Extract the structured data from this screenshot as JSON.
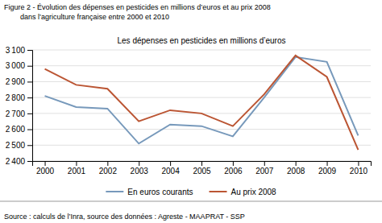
{
  "chart_data": {
    "type": "line",
    "title": [
      "Figure 2 - Évolution des dépenses en pesticides en millions d’euros et au prix 2008",
      "        dans l’agriculture française entre 2000 et 2010"
    ],
    "subtitle": "Les dépenses en pesticides en millions d’euros",
    "annotations": [
      "Source : calculs de l’Inra, source des données : Agreste - MAAPRAT - SSP"
    ],
    "x": [
      2000,
      2001,
      2002,
      2003,
      2004,
      2005,
      2006,
      2007,
      2008,
      2009,
      2010
    ],
    "series": [
      {
        "name": "En euros courants",
        "color": "#7799bb",
        "values": [
          2810,
          2740,
          2730,
          2510,
          2630,
          2620,
          2555,
          2800,
          3055,
          3025,
          2560
        ]
      },
      {
        "name": "Au prix 2008",
        "color": "#bb5533",
        "values": [
          2980,
          2880,
          2855,
          2650,
          2720,
          2700,
          2620,
          2820,
          3065,
          2930,
          2470
        ]
      }
    ],
    "xlim": [
      1999.6,
      2010.4
    ],
    "xticks": [
      2000,
      2001,
      2002,
      2003,
      2004,
      2005,
      2006,
      2007,
      2008,
      2009,
      2010
    ],
    "ylim": [
      2400,
      3100
    ],
    "yticks": [
      {
        "value": 2400,
        "label": "2 400"
      },
      {
        "value": 2500,
        "label": "2 500"
      },
      {
        "value": 2600,
        "label": "2 600"
      },
      {
        "value": 2700,
        "label": "2 700"
      },
      {
        "value": 2800,
        "label": "2 800"
      },
      {
        "value": 2900,
        "label": "2 900"
      },
      {
        "value": 3000,
        "label": "3 000"
      },
      {
        "value": 3100,
        "label": "3 100"
      }
    ],
    "grid": true,
    "legend": "bottom"
  }
}
